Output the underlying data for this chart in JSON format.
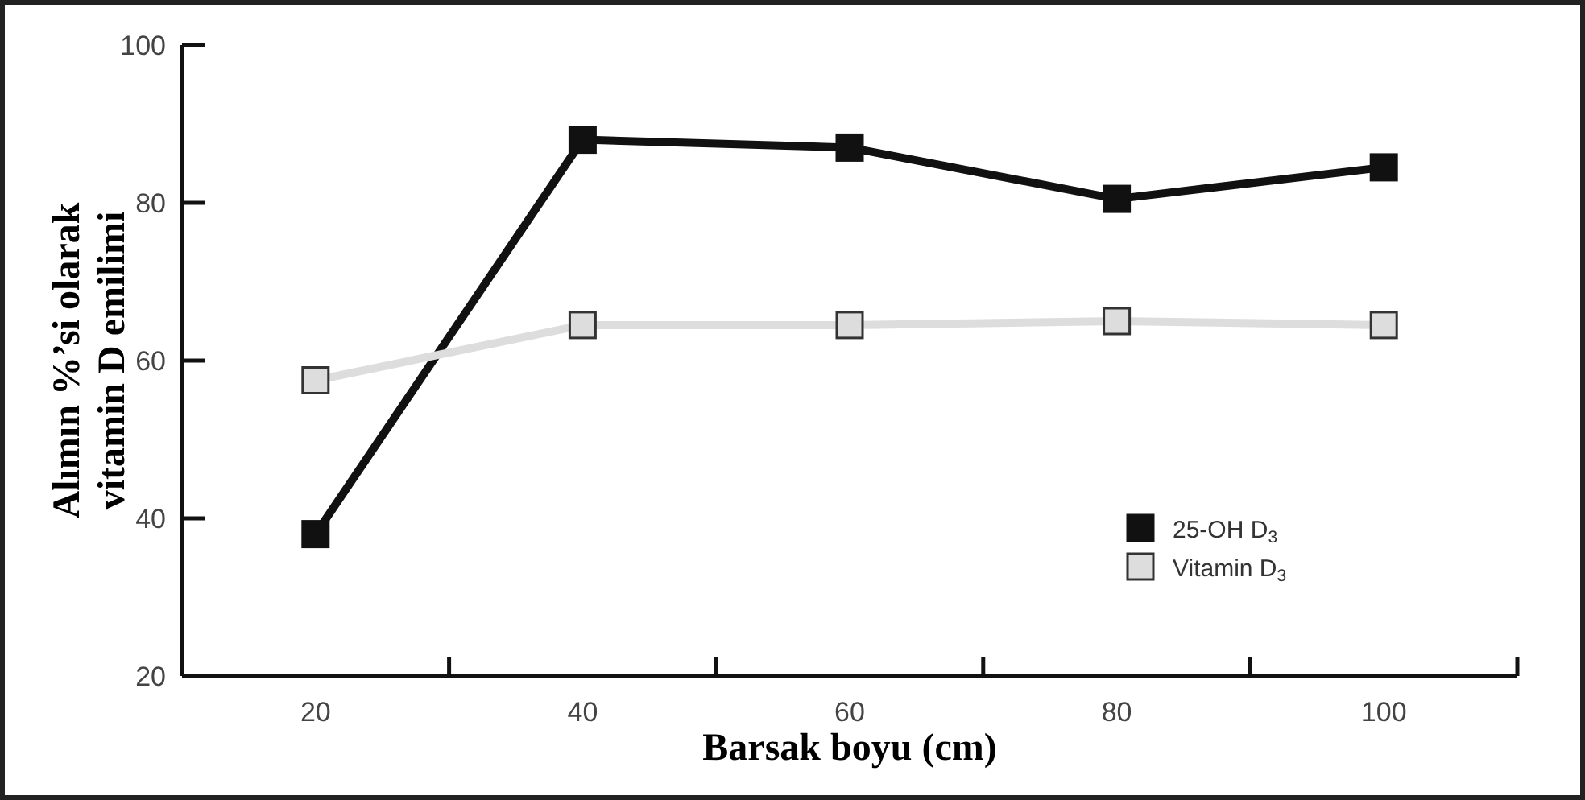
{
  "chart_data": {
    "type": "line",
    "xlabel": "Barsak boyu (cm)",
    "ylabel": "Alımın %’si olarak\nvitamin D emilimi",
    "x": [
      20,
      40,
      60,
      80,
      100
    ],
    "series": [
      {
        "name": "25-OH D$_{3}$",
        "color": "#111111",
        "values": [
          38,
          88,
          87,
          80.5,
          84.5
        ]
      },
      {
        "name": "Vitamin D$_{3}$",
        "color": "#dddddd",
        "values": [
          57.5,
          64.5,
          64.5,
          65,
          64.5
        ]
      }
    ],
    "xlim": [
      10,
      110
    ],
    "xticks": [
      20,
      {
        "value": 30,
        "label": null
      },
      40,
      {
        "value": 50,
        "label": null
      },
      60,
      {
        "value": 70,
        "label": null
      },
      80,
      {
        "value": 90,
        "label": null
      },
      100,
      {
        "value": 110,
        "label": null
      }
    ],
    "ylim": [
      20,
      100
    ],
    "yticks": [
      20,
      40,
      60,
      80,
      100
    ],
    "legend": "right",
    "marker": "square",
    "line_style": "solid"
  }
}
